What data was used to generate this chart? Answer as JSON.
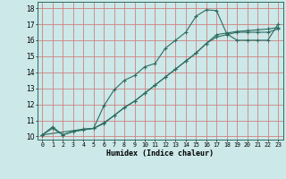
{
  "xlabel": "Humidex (Indice chaleur)",
  "bg_color": "#cce8e8",
  "grid_color": "#d08080",
  "line_color": "#2d6b60",
  "xlim": [
    -0.5,
    23.5
  ],
  "ylim": [
    9.8,
    18.4
  ],
  "xticks": [
    0,
    1,
    2,
    3,
    4,
    5,
    6,
    7,
    8,
    9,
    10,
    11,
    12,
    13,
    14,
    15,
    16,
    17,
    18,
    19,
    20,
    21,
    22,
    23
  ],
  "yticks": [
    10,
    11,
    12,
    13,
    14,
    15,
    16,
    17,
    18
  ],
  "line1_x": [
    0,
    1,
    2,
    3,
    4,
    5,
    6,
    7,
    8,
    9,
    10,
    11,
    12,
    13,
    14,
    15,
    16,
    17,
    18,
    19,
    20,
    21,
    22,
    23
  ],
  "line1_y": [
    10.1,
    10.6,
    10.1,
    10.3,
    10.4,
    10.5,
    11.9,
    12.9,
    13.5,
    13.8,
    14.35,
    14.55,
    15.5,
    16.0,
    16.5,
    17.5,
    17.9,
    17.85,
    16.4,
    16.0,
    16.0,
    16.0,
    16.0,
    17.0
  ],
  "line2_x": [
    0,
    1,
    2,
    3,
    4,
    5,
    6,
    7,
    8,
    9,
    10,
    11,
    12,
    13,
    14,
    15,
    16,
    17,
    18,
    19,
    20,
    21,
    22,
    23
  ],
  "line2_y": [
    10.1,
    10.5,
    10.1,
    10.3,
    10.45,
    10.5,
    10.8,
    11.3,
    11.8,
    12.2,
    12.7,
    13.2,
    13.7,
    14.2,
    14.7,
    15.2,
    15.8,
    16.2,
    16.35,
    16.5,
    16.5,
    16.5,
    16.5,
    16.7
  ],
  "line3_x": [
    0,
    4,
    5,
    6,
    7,
    8,
    9,
    10,
    11,
    12,
    13,
    14,
    15,
    16,
    17,
    18,
    19,
    20,
    21,
    22,
    23
  ],
  "line3_y": [
    10.1,
    10.45,
    10.5,
    10.85,
    11.3,
    11.8,
    12.2,
    12.7,
    13.2,
    13.7,
    14.2,
    14.7,
    15.2,
    15.8,
    16.35,
    16.45,
    16.55,
    16.6,
    16.65,
    16.7,
    16.8
  ]
}
